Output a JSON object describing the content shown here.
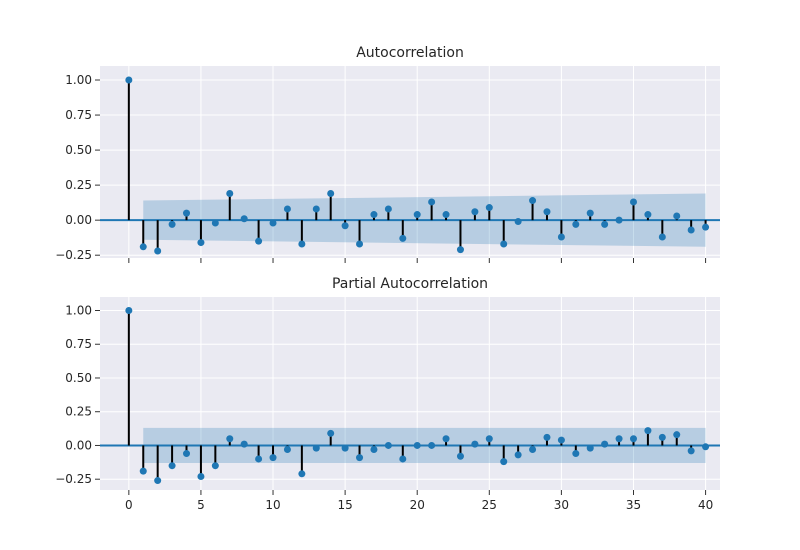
{
  "chart_data": [
    {
      "type": "stem",
      "title": "Autocorrelation",
      "xlim": [
        -2,
        41
      ],
      "ylim": [
        -0.27,
        1.1
      ],
      "xticks": [
        0,
        5,
        10,
        15,
        20,
        25,
        30,
        35,
        40
      ],
      "xtick_labels_visible": false,
      "yticks": [
        -0.25,
        0.0,
        0.25,
        0.5,
        0.75,
        1.0
      ],
      "ytick_labels": [
        "−0.25",
        "0.00",
        "0.25",
        "0.50",
        "0.75",
        "1.00"
      ],
      "grid": true,
      "lags": [
        0,
        1,
        2,
        3,
        4,
        5,
        6,
        7,
        8,
        9,
        10,
        11,
        12,
        13,
        14,
        15,
        16,
        17,
        18,
        19,
        20,
        21,
        22,
        23,
        24,
        25,
        26,
        27,
        28,
        29,
        30,
        31,
        32,
        33,
        34,
        35,
        36,
        37,
        38,
        39,
        40
      ],
      "values": [
        1.0,
        -0.19,
        -0.22,
        -0.03,
        0.05,
        -0.16,
        -0.02,
        0.19,
        0.01,
        -0.15,
        -0.02,
        0.08,
        -0.17,
        0.08,
        0.19,
        -0.04,
        -0.17,
        0.04,
        0.08,
        -0.13,
        0.04,
        0.13,
        0.04,
        -0.21,
        0.06,
        0.09,
        -0.17,
        -0.01,
        0.14,
        0.06,
        -0.12,
        -0.03,
        0.05,
        -0.03,
        0.0,
        0.13,
        0.04,
        -0.12,
        0.03,
        -0.07,
        -0.05
      ],
      "confidence_lag": [
        1,
        40
      ],
      "confidence_upper": [
        0.14,
        0.19
      ],
      "confidence_lower": [
        -0.14,
        -0.19
      ]
    },
    {
      "type": "stem",
      "title": "Partial Autocorrelation",
      "xlim": [
        -2,
        41
      ],
      "ylim": [
        -0.33,
        1.1
      ],
      "xticks": [
        0,
        5,
        10,
        15,
        20,
        25,
        30,
        35,
        40
      ],
      "xtick_labels": [
        "0",
        "5",
        "10",
        "15",
        "20",
        "25",
        "30",
        "35",
        "40"
      ],
      "yticks": [
        -0.25,
        0.0,
        0.25,
        0.5,
        0.75,
        1.0
      ],
      "ytick_labels": [
        "−0.25",
        "0.00",
        "0.25",
        "0.50",
        "0.75",
        "1.00"
      ],
      "grid": true,
      "lags": [
        0,
        1,
        2,
        3,
        4,
        5,
        6,
        7,
        8,
        9,
        10,
        11,
        12,
        13,
        14,
        15,
        16,
        17,
        18,
        19,
        20,
        21,
        22,
        23,
        24,
        25,
        26,
        27,
        28,
        29,
        30,
        31,
        32,
        33,
        34,
        35,
        36,
        37,
        38,
        39,
        40
      ],
      "values": [
        1.0,
        -0.19,
        -0.26,
        -0.15,
        -0.06,
        -0.23,
        -0.15,
        0.05,
        0.01,
        -0.1,
        -0.09,
        -0.03,
        -0.21,
        -0.02,
        0.09,
        -0.02,
        -0.09,
        -0.03,
        0.0,
        -0.1,
        0.0,
        0.0,
        0.05,
        -0.08,
        0.01,
        0.05,
        -0.12,
        -0.07,
        -0.03,
        0.06,
        0.04,
        -0.06,
        -0.02,
        0.01,
        0.05,
        0.05,
        0.11,
        0.06,
        0.08,
        -0.04,
        -0.01
      ],
      "confidence_lag": [
        1,
        40
      ],
      "confidence_upper": [
        0.13,
        0.13
      ],
      "confidence_lower": [
        -0.13,
        -0.13
      ]
    }
  ]
}
